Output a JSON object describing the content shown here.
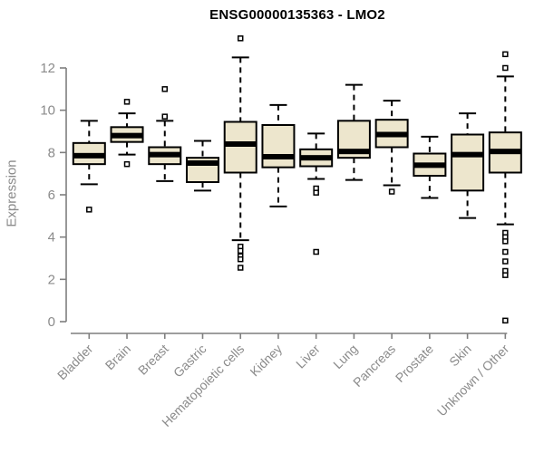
{
  "chart_data": {
    "type": "boxplot",
    "title": "ENSG00000135363 - LMO2",
    "ylabel": "Expression",
    "ylim": [
      0,
      12
    ],
    "yticks": [
      0,
      2,
      4,
      6,
      8,
      10,
      12
    ],
    "grid": false,
    "categories": [
      "Bladder",
      "Brain",
      "Breast",
      "Gastric",
      "Hematopoietic cells",
      "Kidney",
      "Liver",
      "Lung",
      "Pancreas",
      "Prostate",
      "Skin",
      "Unknown / Other"
    ],
    "boxes": [
      {
        "category": "Bladder",
        "whisker_low": 6.5,
        "q1": 7.45,
        "median": 7.85,
        "q3": 8.45,
        "whisker_high": 9.5,
        "outliers": [
          5.3
        ]
      },
      {
        "category": "Brain",
        "whisker_low": 7.9,
        "q1": 8.5,
        "median": 8.8,
        "q3": 9.2,
        "whisker_high": 9.85,
        "outliers": [
          10.4,
          7.45
        ]
      },
      {
        "category": "Breast",
        "whisker_low": 6.65,
        "q1": 7.45,
        "median": 7.9,
        "q3": 8.25,
        "whisker_high": 9.5,
        "outliers": [
          11.0,
          9.7
        ]
      },
      {
        "category": "Gastric",
        "whisker_low": 6.2,
        "q1": 6.6,
        "median": 7.5,
        "q3": 7.75,
        "whisker_high": 8.55,
        "outliers": []
      },
      {
        "category": "Hematopoietic cells",
        "whisker_low": 3.85,
        "q1": 7.05,
        "median": 8.4,
        "q3": 9.45,
        "whisker_high": 12.5,
        "outliers": [
          13.4,
          3.55,
          3.35,
          3.1,
          2.95,
          2.55
        ]
      },
      {
        "category": "Kidney",
        "whisker_low": 5.45,
        "q1": 7.3,
        "median": 7.8,
        "q3": 9.3,
        "whisker_high": 10.25,
        "outliers": []
      },
      {
        "category": "Liver",
        "whisker_low": 6.75,
        "q1": 7.35,
        "median": 7.75,
        "q3": 8.15,
        "whisker_high": 8.9,
        "outliers": [
          6.3,
          6.1,
          3.3
        ]
      },
      {
        "category": "Lung",
        "whisker_low": 6.7,
        "q1": 7.75,
        "median": 8.05,
        "q3": 9.5,
        "whisker_high": 11.2,
        "outliers": []
      },
      {
        "category": "Pancreas",
        "whisker_low": 6.45,
        "q1": 8.25,
        "median": 8.85,
        "q3": 9.55,
        "whisker_high": 10.45,
        "outliers": [
          6.15
        ]
      },
      {
        "category": "Prostate",
        "whisker_low": 5.85,
        "q1": 6.9,
        "median": 7.4,
        "q3": 7.95,
        "whisker_high": 8.75,
        "outliers": []
      },
      {
        "category": "Skin",
        "whisker_low": 4.9,
        "q1": 6.2,
        "median": 7.9,
        "q3": 8.85,
        "whisker_high": 9.85,
        "outliers": []
      },
      {
        "category": "Unknown / Other",
        "whisker_low": 4.6,
        "q1": 7.05,
        "median": 8.05,
        "q3": 8.95,
        "whisker_high": 11.6,
        "outliers": [
          12.65,
          12.0,
          4.2,
          4.0,
          3.8,
          3.3,
          2.85,
          2.4,
          2.2,
          0.05
        ]
      }
    ],
    "colors": {
      "box_fill": "#ede6cd",
      "box_border": "#000000",
      "median": "#000000",
      "whisker": "#000000",
      "outlier_border": "#000000",
      "axis": "#7f7f7f",
      "tick_label": "#8b8b8b",
      "title": "#000000",
      "background": "#ffffff"
    }
  }
}
